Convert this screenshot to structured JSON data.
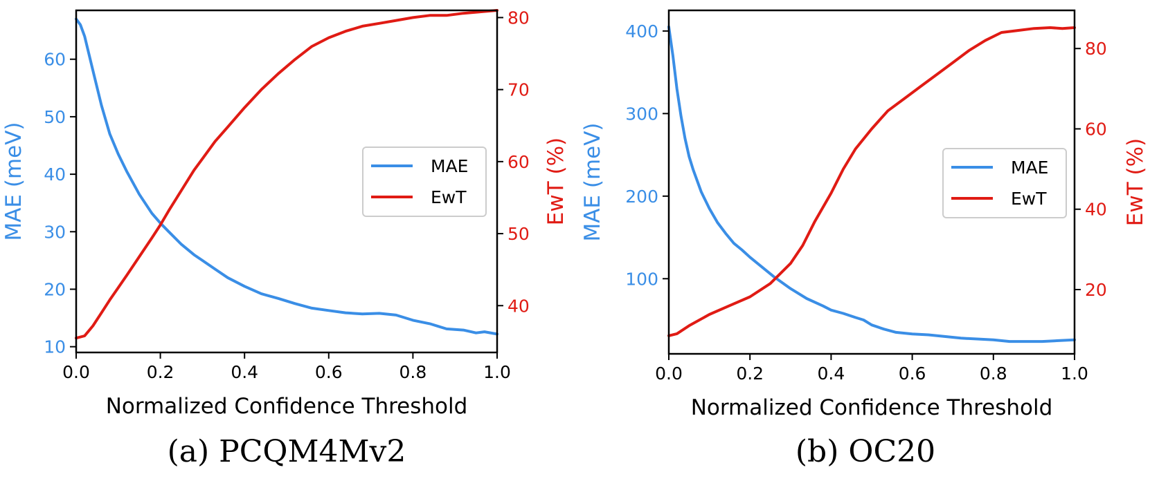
{
  "colors": {
    "mae": "#3a8ee6",
    "ewt": "#e01b14",
    "frame": "#000000"
  },
  "chart_data": [
    {
      "type": "line",
      "caption": "(a) PCQM4Mv2",
      "xlabel": "Normalized Confidence Threshold",
      "ylabel_left": "MAE (meV)",
      "ylabel_right": "EwT (%)",
      "xlim": [
        0,
        1.0
      ],
      "ylim_left": [
        9,
        68.5
      ],
      "ylim_right": [
        33.5,
        81
      ],
      "xticks": [
        0.0,
        0.2,
        0.4,
        0.6,
        0.8,
        1.0
      ],
      "xtick_labels": [
        "0.0",
        "0.2",
        "0.4",
        "0.6",
        "0.8",
        "1.0"
      ],
      "yticks_left": [
        10,
        20,
        30,
        40,
        50,
        60
      ],
      "ytick_labels_left": [
        "10",
        "20",
        "30",
        "40",
        "50",
        "60"
      ],
      "yticks_right": [
        40,
        50,
        60,
        70,
        80
      ],
      "ytick_labels_right": [
        "40",
        "50",
        "60",
        "70",
        "80"
      ],
      "legend": {
        "position": "center-right",
        "entries": [
          "MAE",
          "EwT"
        ]
      },
      "series": [
        {
          "name": "MAE",
          "axis": "left",
          "x": [
            0,
            0.01,
            0.02,
            0.04,
            0.06,
            0.08,
            0.1,
            0.12,
            0.15,
            0.18,
            0.2,
            0.22,
            0.25,
            0.28,
            0.3,
            0.33,
            0.36,
            0.4,
            0.44,
            0.48,
            0.52,
            0.56,
            0.6,
            0.64,
            0.68,
            0.72,
            0.76,
            0.8,
            0.84,
            0.88,
            0.92,
            0.95,
            0.97,
            1.0
          ],
          "values": [
            67,
            66,
            64,
            58,
            52,
            47,
            43.5,
            40.5,
            36.5,
            33.2,
            31.5,
            30,
            27.8,
            26,
            25,
            23.5,
            22,
            20.5,
            19.2,
            18.4,
            17.5,
            16.7,
            16.3,
            15.9,
            15.7,
            15.8,
            15.5,
            14.6,
            14,
            13.1,
            12.9,
            12.4,
            12.6,
            12.2
          ]
        },
        {
          "name": "EwT",
          "axis": "right",
          "x": [
            0,
            0.02,
            0.04,
            0.06,
            0.08,
            0.1,
            0.12,
            0.15,
            0.18,
            0.2,
            0.22,
            0.25,
            0.28,
            0.3,
            0.33,
            0.36,
            0.4,
            0.44,
            0.48,
            0.52,
            0.56,
            0.6,
            0.64,
            0.68,
            0.72,
            0.76,
            0.8,
            0.84,
            0.88,
            0.92,
            0.96,
            1.0
          ],
          "values": [
            35.5,
            35.8,
            37.2,
            39,
            40.8,
            42.5,
            44.2,
            46.8,
            49.4,
            51.2,
            53.2,
            56,
            58.8,
            60.4,
            62.8,
            64.8,
            67.5,
            70,
            72.2,
            74.2,
            76,
            77.2,
            78.1,
            78.8,
            79.2,
            79.6,
            80,
            80.3,
            80.3,
            80.6,
            80.8,
            81
          ]
        }
      ]
    },
    {
      "type": "line",
      "caption": "(b) OC20",
      "xlabel": "Normalized Confidence Threshold",
      "ylabel_left": "MAE (meV)",
      "ylabel_right": "EwT (%)",
      "xlim": [
        0,
        1.0
      ],
      "ylim_left": [
        9,
        425
      ],
      "ylim_right": [
        4,
        89.5
      ],
      "xticks": [
        0.0,
        0.2,
        0.4,
        0.6,
        0.8,
        1.0
      ],
      "xtick_labels": [
        "0.0",
        "0.2",
        "0.4",
        "0.6",
        "0.8",
        "1.0"
      ],
      "yticks_left": [
        100,
        200,
        300,
        400
      ],
      "ytick_labels_left": [
        "100",
        "200",
        "300",
        "400"
      ],
      "yticks_right": [
        20,
        40,
        60,
        80
      ],
      "ytick_labels_right": [
        "20",
        "40",
        "60",
        "80"
      ],
      "legend": {
        "position": "center-right",
        "entries": [
          "MAE",
          "EwT"
        ]
      },
      "series": [
        {
          "name": "MAE",
          "axis": "left",
          "x": [
            0,
            0.01,
            0.02,
            0.03,
            0.04,
            0.05,
            0.06,
            0.08,
            0.1,
            0.12,
            0.14,
            0.16,
            0.18,
            0.2,
            0.23,
            0.26,
            0.3,
            0.34,
            0.38,
            0.4,
            0.43,
            0.46,
            0.48,
            0.5,
            0.53,
            0.56,
            0.6,
            0.64,
            0.68,
            0.72,
            0.76,
            0.8,
            0.84,
            0.88,
            0.92,
            0.96,
            1.0
          ],
          "values": [
            405,
            370,
            330,
            297,
            270,
            248,
            232,
            205,
            185,
            168,
            155,
            143,
            135,
            126,
            114,
            102,
            88,
            76,
            67,
            62,
            58,
            53,
            50,
            44,
            39,
            35,
            33,
            32,
            30,
            28,
            27,
            26,
            24,
            24,
            24,
            25,
            26
          ]
        },
        {
          "name": "EwT",
          "axis": "right",
          "x": [
            0,
            0.02,
            0.05,
            0.1,
            0.15,
            0.2,
            0.25,
            0.3,
            0.33,
            0.36,
            0.4,
            0.43,
            0.46,
            0.5,
            0.54,
            0.58,
            0.62,
            0.66,
            0.7,
            0.74,
            0.78,
            0.82,
            0.86,
            0.9,
            0.94,
            0.97,
            1.0
          ],
          "values": [
            8.5,
            9,
            11,
            13.8,
            16,
            18.2,
            21.5,
            26.5,
            31,
            37,
            44,
            50,
            55,
            60,
            64.5,
            67.5,
            70.5,
            73.5,
            76.5,
            79.5,
            82,
            84,
            84.5,
            85,
            85.2,
            85,
            85.2
          ]
        }
      ]
    }
  ]
}
